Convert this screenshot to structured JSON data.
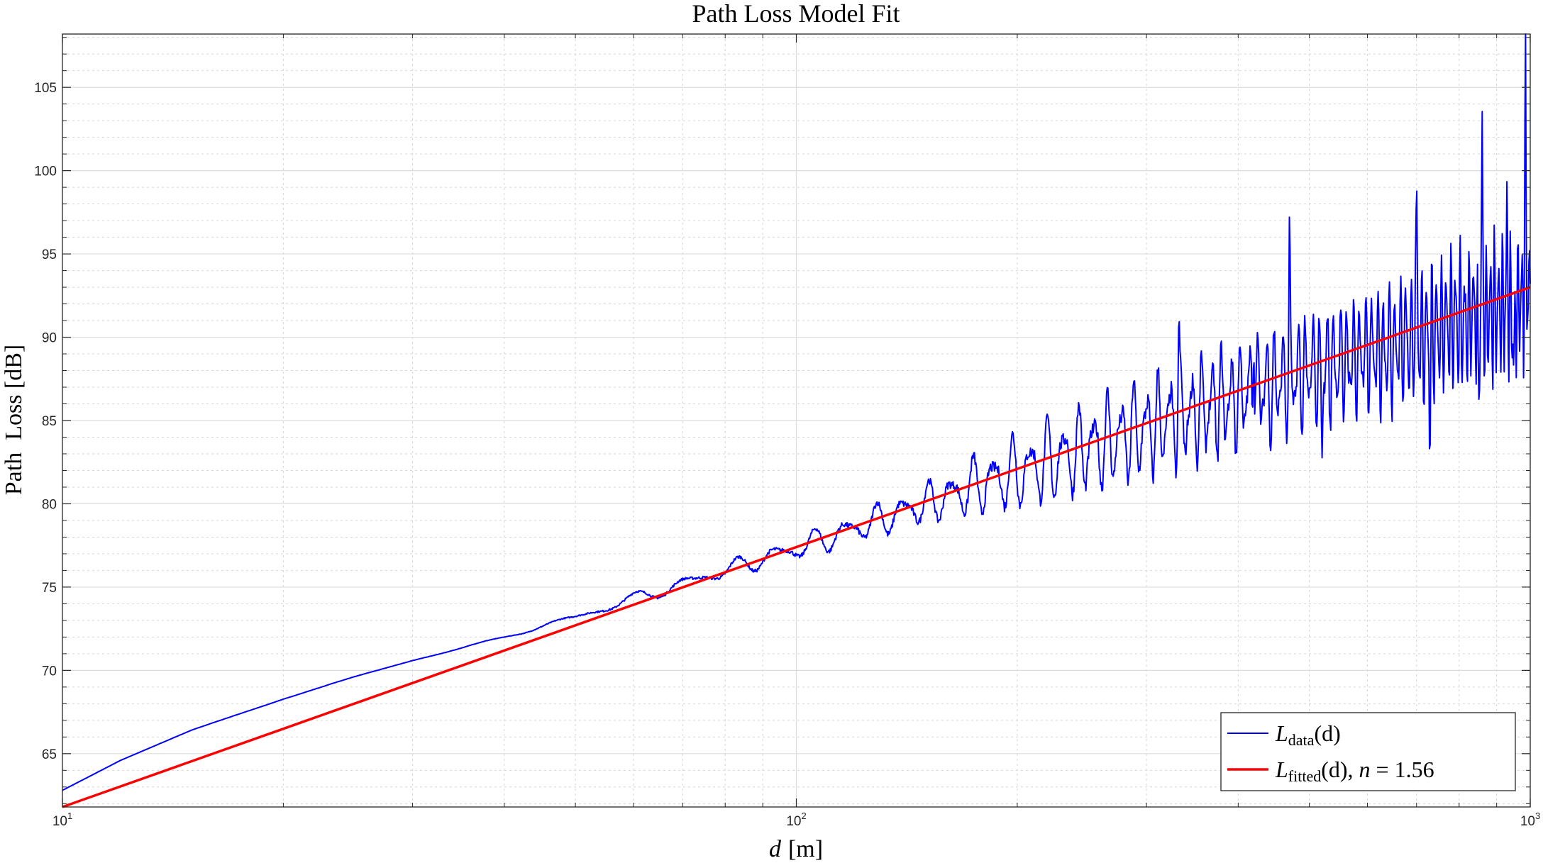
{
  "chart_data": {
    "type": "line",
    "title": "Path Loss Model Fit",
    "xlabel_var": "d",
    "xlabel_unit": "[m]",
    "ylabel": "Path  Loss [dB]",
    "xscale": "log",
    "xlim": [
      10,
      1000
    ],
    "ylim": [
      61.8,
      108.2
    ],
    "x_ticks": [
      {
        "value": 10,
        "base": "10",
        "exp": "1"
      },
      {
        "value": 100,
        "base": "10",
        "exp": "2"
      },
      {
        "value": 1000,
        "base": "10",
        "exp": "3"
      }
    ],
    "y_ticks": [
      65,
      70,
      75,
      80,
      85,
      90,
      95,
      100,
      105
    ],
    "grid": true,
    "minor_grid": true,
    "legend_location": "bottom-right",
    "series": [
      {
        "name": "L_data(d)",
        "label_main": "L",
        "label_sub": "data",
        "label_rest": "(d)",
        "color": "#0000ff",
        "anchors_x": [
          10,
          12,
          15,
          20,
          25,
          30,
          40,
          50,
          60,
          70,
          80,
          90,
          100,
          120,
          150,
          200,
          250,
          300,
          400,
          500,
          600,
          700,
          800,
          900,
          1000
        ],
        "anchors_y": [
          62.8,
          64.6,
          66.4,
          68.3,
          69.6,
          70.6,
          72.0,
          73.2,
          74.3,
          75.2,
          76.0,
          76.7,
          77.3,
          78.5,
          80.0,
          81.9,
          83.3,
          84.5,
          86.4,
          87.9,
          89.0,
          90.0,
          90.9,
          91.7,
          92.4
        ],
        "oscillation_amplitude": [
          [
            10,
            0
          ],
          [
            40,
            0.05
          ],
          [
            55,
            0.3
          ],
          [
            80,
            0.5
          ],
          [
            100,
            0.7
          ],
          [
            150,
            1.2
          ],
          [
            200,
            2.2
          ],
          [
            300,
            3.0
          ],
          [
            500,
            3.5
          ],
          [
            700,
            4.0
          ],
          [
            1000,
            4.5
          ]
        ],
        "peaks": [
          {
            "x": 332,
            "y": 91.4
          },
          {
            "x": 420,
            "y": 95.2
          },
          {
            "x": 470,
            "y": 96.3
          },
          {
            "x": 700,
            "y": 100.6
          },
          {
            "x": 860,
            "y": 103.8
          },
          {
            "x": 930,
            "y": 98.5
          },
          {
            "x": 985,
            "y": 108.1
          }
        ],
        "troughs": [
          {
            "x": 520,
            "y": 82.6
          },
          {
            "x": 730,
            "y": 83.3
          },
          {
            "x": 850,
            "y": 83.8
          },
          {
            "x": 950,
            "y": 84.3
          }
        ]
      },
      {
        "name": "L_fitted(d), n = 1.56",
        "label_main": "L",
        "label_sub": "fitted",
        "label_rest": "(d), ",
        "label_n": "n",
        "label_value": " = 1.56",
        "color": "#ff0000",
        "x": [
          10,
          1000
        ],
        "y": [
          61.8,
          93.0
        ]
      }
    ]
  }
}
